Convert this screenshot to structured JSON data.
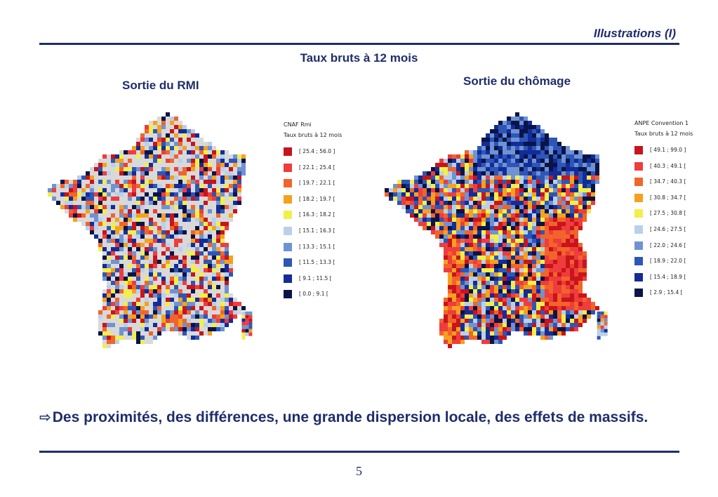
{
  "header": {
    "title": "Illustrations (I)"
  },
  "subtitle": "Taux bruts à 12 mois",
  "maps": [
    {
      "title": "Sortie du RMI",
      "legend_source": "CNAF Rmi",
      "legend_title": "Taux bruts à 12 mois",
      "legend": [
        {
          "label": "[ 25.4 ; 56.0 ]",
          "color": "#c8141c"
        },
        {
          "label": "[ 22.1 ; 25.4 [",
          "color": "#ef3c3c"
        },
        {
          "label": "[ 19.7 ; 22.1 [",
          "color": "#f2642a"
        },
        {
          "label": "[ 18.2 ; 19.7 [",
          "color": "#f5a11e"
        },
        {
          "label": "[ 16.3 ; 18.2 [",
          "color": "#f2ef4a"
        },
        {
          "label": "[ 15.1 ; 16.3 [",
          "color": "#b9d0ea"
        },
        {
          "label": "[ 13.3 ; 15.1 [",
          "color": "#6f93d2"
        },
        {
          "label": "[ 11.5 ; 13.3 [",
          "color": "#2d56b8"
        },
        {
          "label": "[ 9.1 ; 11.5 [",
          "color": "#132c9a"
        },
        {
          "label": "[ 0.0 ; 9.1 [",
          "color": "#0a1447"
        }
      ]
    },
    {
      "title": "Sortie du chômage",
      "legend_source": "ANPE Convention 1",
      "legend_title": "Taux bruts à 12 mois",
      "legend": [
        {
          "label": "[ 49.1 ; 99.0 ]",
          "color": "#c8141c"
        },
        {
          "label": "[ 40.3 ; 49.1 [",
          "color": "#ef3c3c"
        },
        {
          "label": "[ 34.7 ; 40.3 [",
          "color": "#f2642a"
        },
        {
          "label": "[ 30.8 ; 34.7 [",
          "color": "#f5a11e"
        },
        {
          "label": "[ 27.5 ; 30.8 [",
          "color": "#f2ef4a"
        },
        {
          "label": "[ 24.6 ; 27.5 [",
          "color": "#b9d0ea"
        },
        {
          "label": "[ 22.0 ; 24.6 [",
          "color": "#6f93d2"
        },
        {
          "label": "[ 18.9 ; 22.0 [",
          "color": "#2d56b8"
        },
        {
          "label": "[ 15.4 ; 18.9 [",
          "color": "#132c9a"
        },
        {
          "label": "[ 2.9 ; 15.4 [",
          "color": "#0a1447"
        }
      ]
    }
  ],
  "conclusion": "Des proximités, des différences, une grande dispersion locale, des effets de massifs.",
  "conclusion_icon": "right-arrow-outline-icon",
  "page_number": "5"
}
